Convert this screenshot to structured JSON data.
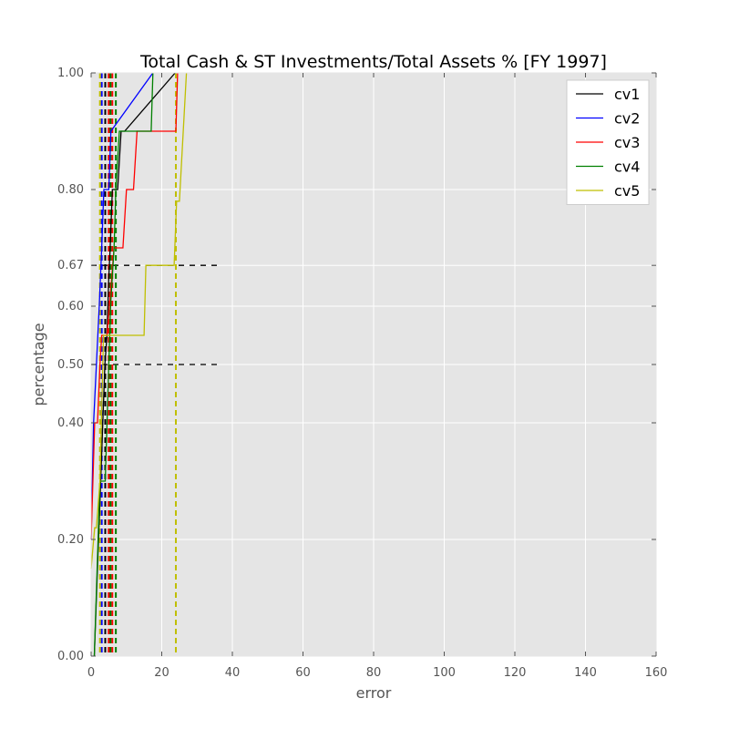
{
  "chart_data": {
    "type": "line",
    "title": "Total Cash & ST Investments/Total Assets % [FY 1997]",
    "xlabel": "error",
    "ylabel": "percentage",
    "xlim": [
      0,
      160
    ],
    "ylim": [
      0,
      1
    ],
    "xticks": [
      0,
      20,
      40,
      60,
      80,
      100,
      120,
      140,
      160
    ],
    "xtick_labels": [
      "0",
      "20",
      "40",
      "60",
      "80",
      "100",
      "120",
      "140",
      "160"
    ],
    "yticks": [
      0,
      0.2,
      0.4,
      0.5,
      0.6,
      0.67,
      0.8,
      1.0
    ],
    "ytick_labels": [
      "0.00",
      "0.20",
      "0.40",
      "0.50",
      "0.60",
      "0.67",
      "0.80",
      "1.00"
    ],
    "grid": true,
    "legend_position": "top-right",
    "background": "#e5e5e5",
    "reference_lines": [
      {
        "y": 0.5,
        "x_end": 36,
        "color": "#000000"
      },
      {
        "y": 0.67,
        "x_end": 36,
        "color": "#000000"
      }
    ],
    "series": [
      {
        "name": "cv1",
        "color": "#000000",
        "x": [
          0.9,
          1.5,
          2.1,
          2.7,
          3.3,
          3.9,
          4.5,
          5.0,
          5.4,
          6.0,
          7.5,
          8.5,
          9.5,
          23.8
        ],
        "y": [
          0.0,
          0.1,
          0.2,
          0.3,
          0.4,
          0.5,
          0.55,
          0.65,
          0.7,
          0.8,
          0.8,
          0.9,
          0.9,
          1.0
        ],
        "vlines_x": [
          4.0,
          5.0
        ]
      },
      {
        "name": "cv2",
        "color": "#0000ff",
        "x": [
          0.0,
          0.7,
          1.5,
          2.3,
          3.0,
          3.6,
          4.0,
          5.0,
          5.6,
          17.5
        ],
        "y": [
          0.2,
          0.4,
          0.5,
          0.6,
          0.7,
          0.8,
          0.8,
          0.8,
          0.9,
          1.0
        ],
        "vlines_x": [
          3.0
        ]
      },
      {
        "name": "cv3",
        "color": "#ff0000",
        "x": [
          0.0,
          1.0,
          1.8,
          2.5,
          3.0,
          4.5,
          6.5,
          9.0,
          10.0,
          12.0,
          13.0,
          24.0,
          24.5
        ],
        "y": [
          0.2,
          0.4,
          0.4,
          0.5,
          0.55,
          0.55,
          0.7,
          0.7,
          0.8,
          0.8,
          0.9,
          0.9,
          1.0
        ],
        "vlines_x": [
          5.0,
          6.0
        ]
      },
      {
        "name": "cv4",
        "color": "#008000",
        "x": [
          0.9,
          2.5,
          4.0,
          5.0,
          5.5,
          6.5,
          7.0,
          8.0,
          9.0,
          17.0,
          17.5
        ],
        "y": [
          0.0,
          0.3,
          0.3,
          0.5,
          0.6,
          0.7,
          0.8,
          0.9,
          0.9,
          0.9,
          1.0
        ],
        "vlines_x": [
          5.5,
          7.0
        ]
      },
      {
        "name": "cv5",
        "color": "#bfbf00",
        "x": [
          0.0,
          1.0,
          1.5,
          2.5,
          3.5,
          6.0,
          15.0,
          15.5,
          23.5,
          24.2,
          25.0,
          27.0
        ],
        "y": [
          0.15,
          0.22,
          0.22,
          0.3,
          0.55,
          0.55,
          0.55,
          0.67,
          0.67,
          0.78,
          0.78,
          1.0
        ],
        "vlines_x": [
          2.5,
          24.0
        ]
      }
    ]
  }
}
